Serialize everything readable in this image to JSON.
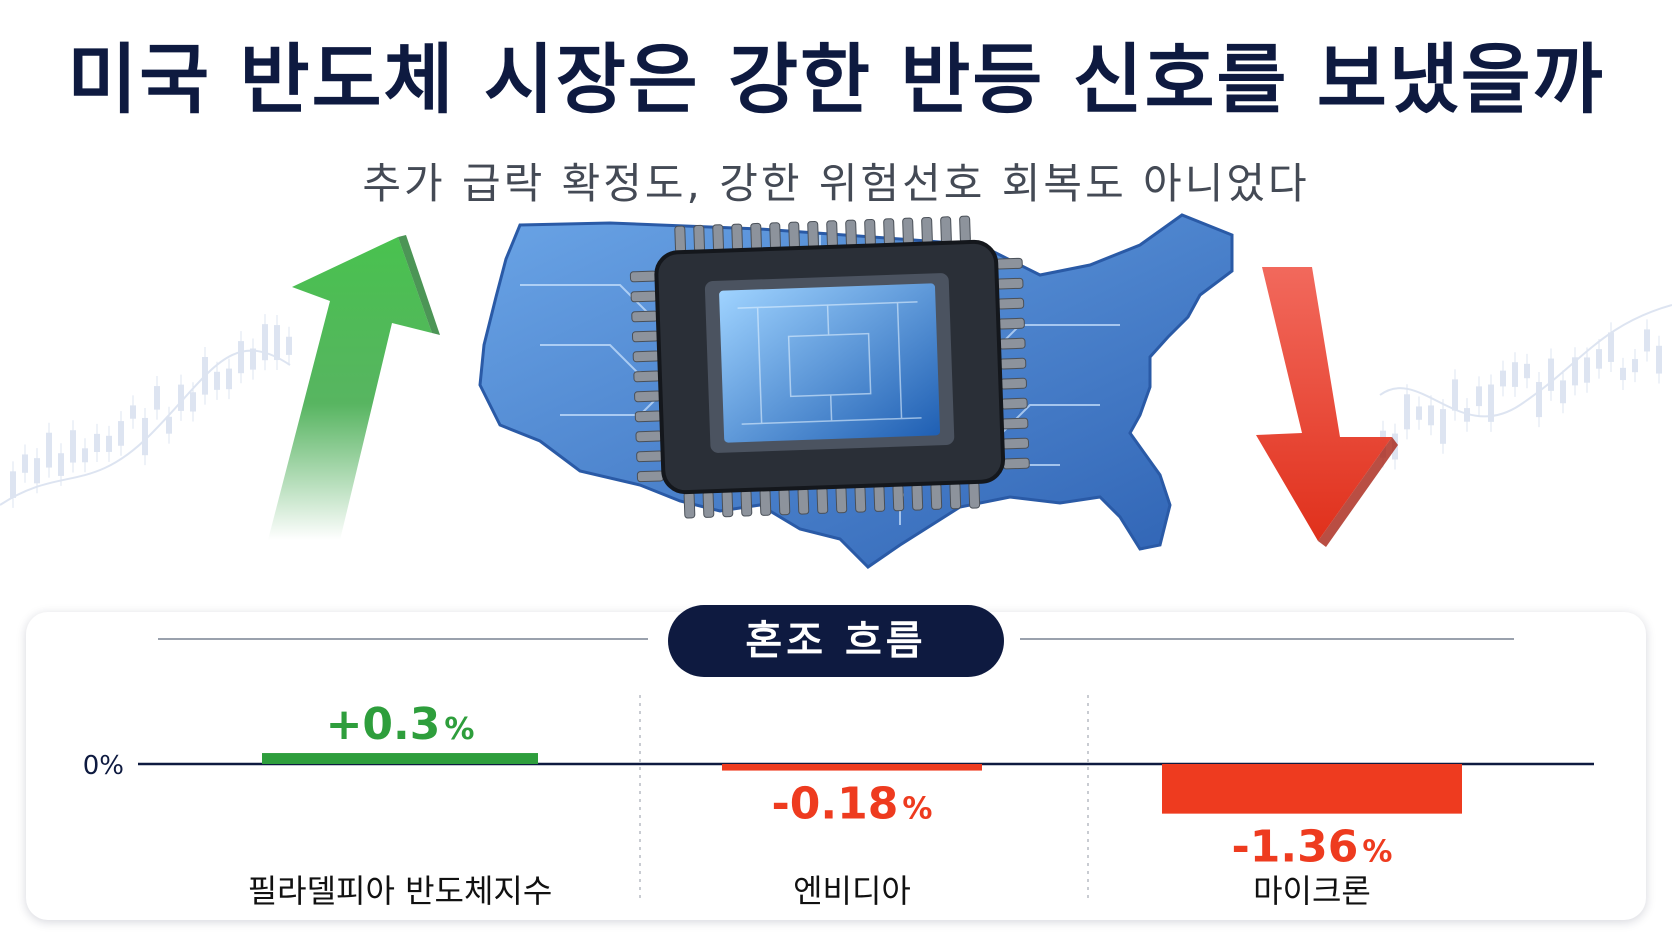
{
  "header": {
    "title": "미국 반도체 시장은 강한 반등 신호를 보냈을까",
    "subtitle": "추가 급락 확정도, 강한 위험선호 회복도 아니었다"
  },
  "badge": {
    "label": "혼조 흐름"
  },
  "colors": {
    "positive": "#2e9e3c",
    "negative": "#ee3b1f",
    "navy": "#0e1a40",
    "map_blue": "#3f78c8"
  },
  "chart_data": {
    "type": "bar",
    "categories": [
      "필라델피아 반도체지수",
      "엔비디아",
      "마이크론"
    ],
    "values": [
      0.3,
      -0.18,
      -1.36
    ],
    "value_labels": [
      "+0.3",
      "-0.18",
      "-1.36"
    ],
    "unit": "%",
    "baseline_label": "0%",
    "title": "",
    "xlabel": "",
    "ylabel": ""
  }
}
